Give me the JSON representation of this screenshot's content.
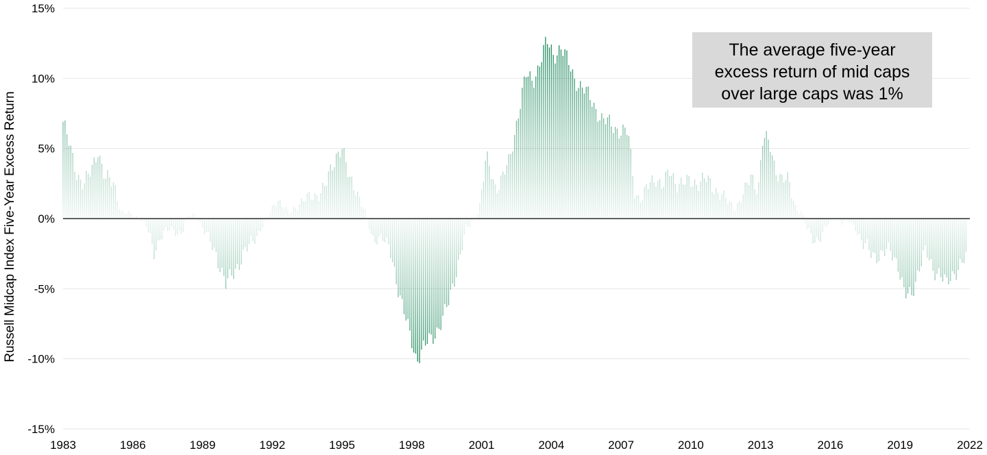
{
  "chart_data": {
    "type": "bar",
    "title": "",
    "xlabel": "",
    "ylabel": "Russell Midcap Index Five-Year Excess Return",
    "x_ticks": [
      "1983",
      "1986",
      "1989",
      "1992",
      "1995",
      "1998",
      "2001",
      "2004",
      "2007",
      "2010",
      "2013",
      "2016",
      "2019",
      "2022"
    ],
    "y_ticks": [
      "15%",
      "10%",
      "5%",
      "0%",
      "-5%",
      "-10%",
      "-15%"
    ],
    "y_tick_values": [
      15,
      10,
      5,
      0,
      -5,
      -10,
      -15
    ],
    "ylim": [
      -15,
      15
    ],
    "xlim": [
      1983,
      2022
    ],
    "grid": "horizontal",
    "series_color": "#1f8a5e",
    "annotation": {
      "lines": [
        "The average five-year",
        "excess return of mid caps",
        "over large caps was 1%"
      ],
      "background": "#d9d9d9"
    },
    "anchors": [
      [
        1983.0,
        6.9
      ],
      [
        1983.3,
        5.0
      ],
      [
        1983.6,
        3.2
      ],
      [
        1983.9,
        2.4
      ],
      [
        1984.2,
        3.3
      ],
      [
        1984.5,
        5.0
      ],
      [
        1984.8,
        2.8
      ],
      [
        1985.2,
        2.5
      ],
      [
        1985.5,
        0.5
      ],
      [
        1985.8,
        0.3
      ],
      [
        1986.3,
        0.1
      ],
      [
        1986.6,
        -0.6
      ],
      [
        1986.9,
        -2.4
      ],
      [
        1987.2,
        -1.2
      ],
      [
        1987.6,
        -0.8
      ],
      [
        1988.1,
        -1.0
      ],
      [
        1988.4,
        0.2
      ],
      [
        1988.7,
        0.3
      ],
      [
        1989.2,
        -1.3
      ],
      [
        1989.6,
        -2.5
      ],
      [
        1990.0,
        -4.8
      ],
      [
        1990.5,
        -3.3
      ],
      [
        1991.0,
        -2.0
      ],
      [
        1991.5,
        -0.7
      ],
      [
        1991.9,
        0.3
      ],
      [
        1992.2,
        1.5
      ],
      [
        1992.7,
        0.3
      ],
      [
        1993.2,
        1.2
      ],
      [
        1993.8,
        1.6
      ],
      [
        1994.3,
        2.3
      ],
      [
        1994.8,
        4.8
      ],
      [
        1995.0,
        5.1
      ],
      [
        1995.3,
        2.7
      ],
      [
        1995.6,
        2.2
      ],
      [
        1996.0,
        0.4
      ],
      [
        1996.3,
        -1.5
      ],
      [
        1996.7,
        -1.2
      ],
      [
        1997.1,
        -2.6
      ],
      [
        1997.5,
        -5.5
      ],
      [
        1997.9,
        -8.3
      ],
      [
        1998.2,
        -10.0
      ],
      [
        1998.5,
        -9.2
      ],
      [
        1998.9,
        -8.5
      ],
      [
        1999.3,
        -7.2
      ],
      [
        1999.6,
        -6.0
      ],
      [
        1999.9,
        -3.8
      ],
      [
        2000.3,
        -0.9
      ],
      [
        2000.6,
        -0.3
      ],
      [
        2000.9,
        0.8
      ],
      [
        2001.2,
        4.3
      ],
      [
        2001.6,
        2.2
      ],
      [
        2001.9,
        3.0
      ],
      [
        2002.2,
        4.0
      ],
      [
        2002.6,
        7.8
      ],
      [
        2002.9,
        10.2
      ],
      [
        2003.2,
        9.7
      ],
      [
        2003.5,
        11.2
      ],
      [
        2003.8,
        12.6
      ],
      [
        2004.1,
        11.6
      ],
      [
        2004.4,
        12.3
      ],
      [
        2004.7,
        11.2
      ],
      [
        2005.0,
        10.0
      ],
      [
        2005.4,
        9.2
      ],
      [
        2005.8,
        8.2
      ],
      [
        2006.2,
        7.0
      ],
      [
        2006.6,
        6.7
      ],
      [
        2007.0,
        6.2
      ],
      [
        2007.3,
        6.1
      ],
      [
        2007.6,
        1.8
      ],
      [
        2007.9,
        1.4
      ],
      [
        2008.2,
        2.4
      ],
      [
        2008.5,
        3.0
      ],
      [
        2008.8,
        2.3
      ],
      [
        2009.1,
        3.3
      ],
      [
        2009.4,
        2.6
      ],
      [
        2009.8,
        2.5
      ],
      [
        2010.2,
        2.6
      ],
      [
        2010.6,
        2.8
      ],
      [
        2010.9,
        2.3
      ],
      [
        2011.3,
        1.8
      ],
      [
        2011.6,
        1.1
      ],
      [
        2011.9,
        0.8
      ],
      [
        2012.3,
        1.8
      ],
      [
        2012.6,
        3.0
      ],
      [
        2012.9,
        2.2
      ],
      [
        2013.1,
        5.8
      ],
      [
        2013.4,
        5.2
      ],
      [
        2013.6,
        3.8
      ],
      [
        2013.9,
        2.8
      ],
      [
        2014.2,
        2.6
      ],
      [
        2014.5,
        0.9
      ],
      [
        2014.8,
        0.3
      ],
      [
        2015.0,
        -0.8
      ],
      [
        2015.3,
        -1.5
      ],
      [
        2015.6,
        -1.3
      ],
      [
        2015.9,
        -0.4
      ],
      [
        2016.2,
        0.2
      ],
      [
        2016.5,
        -0.3
      ],
      [
        2016.8,
        -0.2
      ],
      [
        2017.1,
        -0.6
      ],
      [
        2017.4,
        -1.9
      ],
      [
        2017.8,
        -2.5
      ],
      [
        2018.2,
        -2.6
      ],
      [
        2018.6,
        -2.3
      ],
      [
        2018.9,
        -3.1
      ],
      [
        2019.2,
        -5.6
      ],
      [
        2019.5,
        -5.4
      ],
      [
        2019.8,
        -3.5
      ],
      [
        2020.1,
        -2.4
      ],
      [
        2020.4,
        -3.6
      ],
      [
        2020.7,
        -3.8
      ],
      [
        2021.0,
        -4.8
      ],
      [
        2021.3,
        -3.9
      ],
      [
        2021.6,
        -3.2
      ],
      [
        2021.9,
        -2.8
      ]
    ]
  }
}
